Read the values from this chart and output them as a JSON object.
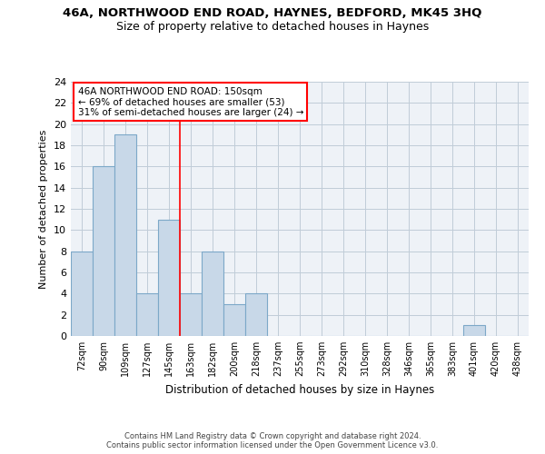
{
  "title1": "46A, NORTHWOOD END ROAD, HAYNES, BEDFORD, MK45 3HQ",
  "title2": "Size of property relative to detached houses in Haynes",
  "xlabel": "Distribution of detached houses by size in Haynes",
  "ylabel": "Number of detached properties",
  "categories": [
    "72sqm",
    "90sqm",
    "109sqm",
    "127sqm",
    "145sqm",
    "163sqm",
    "182sqm",
    "200sqm",
    "218sqm",
    "237sqm",
    "255sqm",
    "273sqm",
    "292sqm",
    "310sqm",
    "328sqm",
    "346sqm",
    "365sqm",
    "383sqm",
    "401sqm",
    "420sqm",
    "438sqm"
  ],
  "values": [
    8,
    16,
    19,
    4,
    11,
    4,
    8,
    3,
    4,
    0,
    0,
    0,
    0,
    0,
    0,
    0,
    0,
    0,
    1,
    0,
    0
  ],
  "bar_color": "#c8d8e8",
  "bar_edge_color": "#7ca8c8",
  "ylim": [
    0,
    24
  ],
  "yticks": [
    0,
    2,
    4,
    6,
    8,
    10,
    12,
    14,
    16,
    18,
    20,
    22,
    24
  ],
  "red_line_x": 4.5,
  "annotation_text": "46A NORTHWOOD END ROAD: 150sqm\n← 69% of detached houses are smaller (53)\n31% of semi-detached houses are larger (24) →",
  "footnote": "Contains HM Land Registry data © Crown copyright and database right 2024.\nContains public sector information licensed under the Open Government Licence v3.0.",
  "bg_color": "#eef2f7",
  "grid_color": "#c0ccd8"
}
